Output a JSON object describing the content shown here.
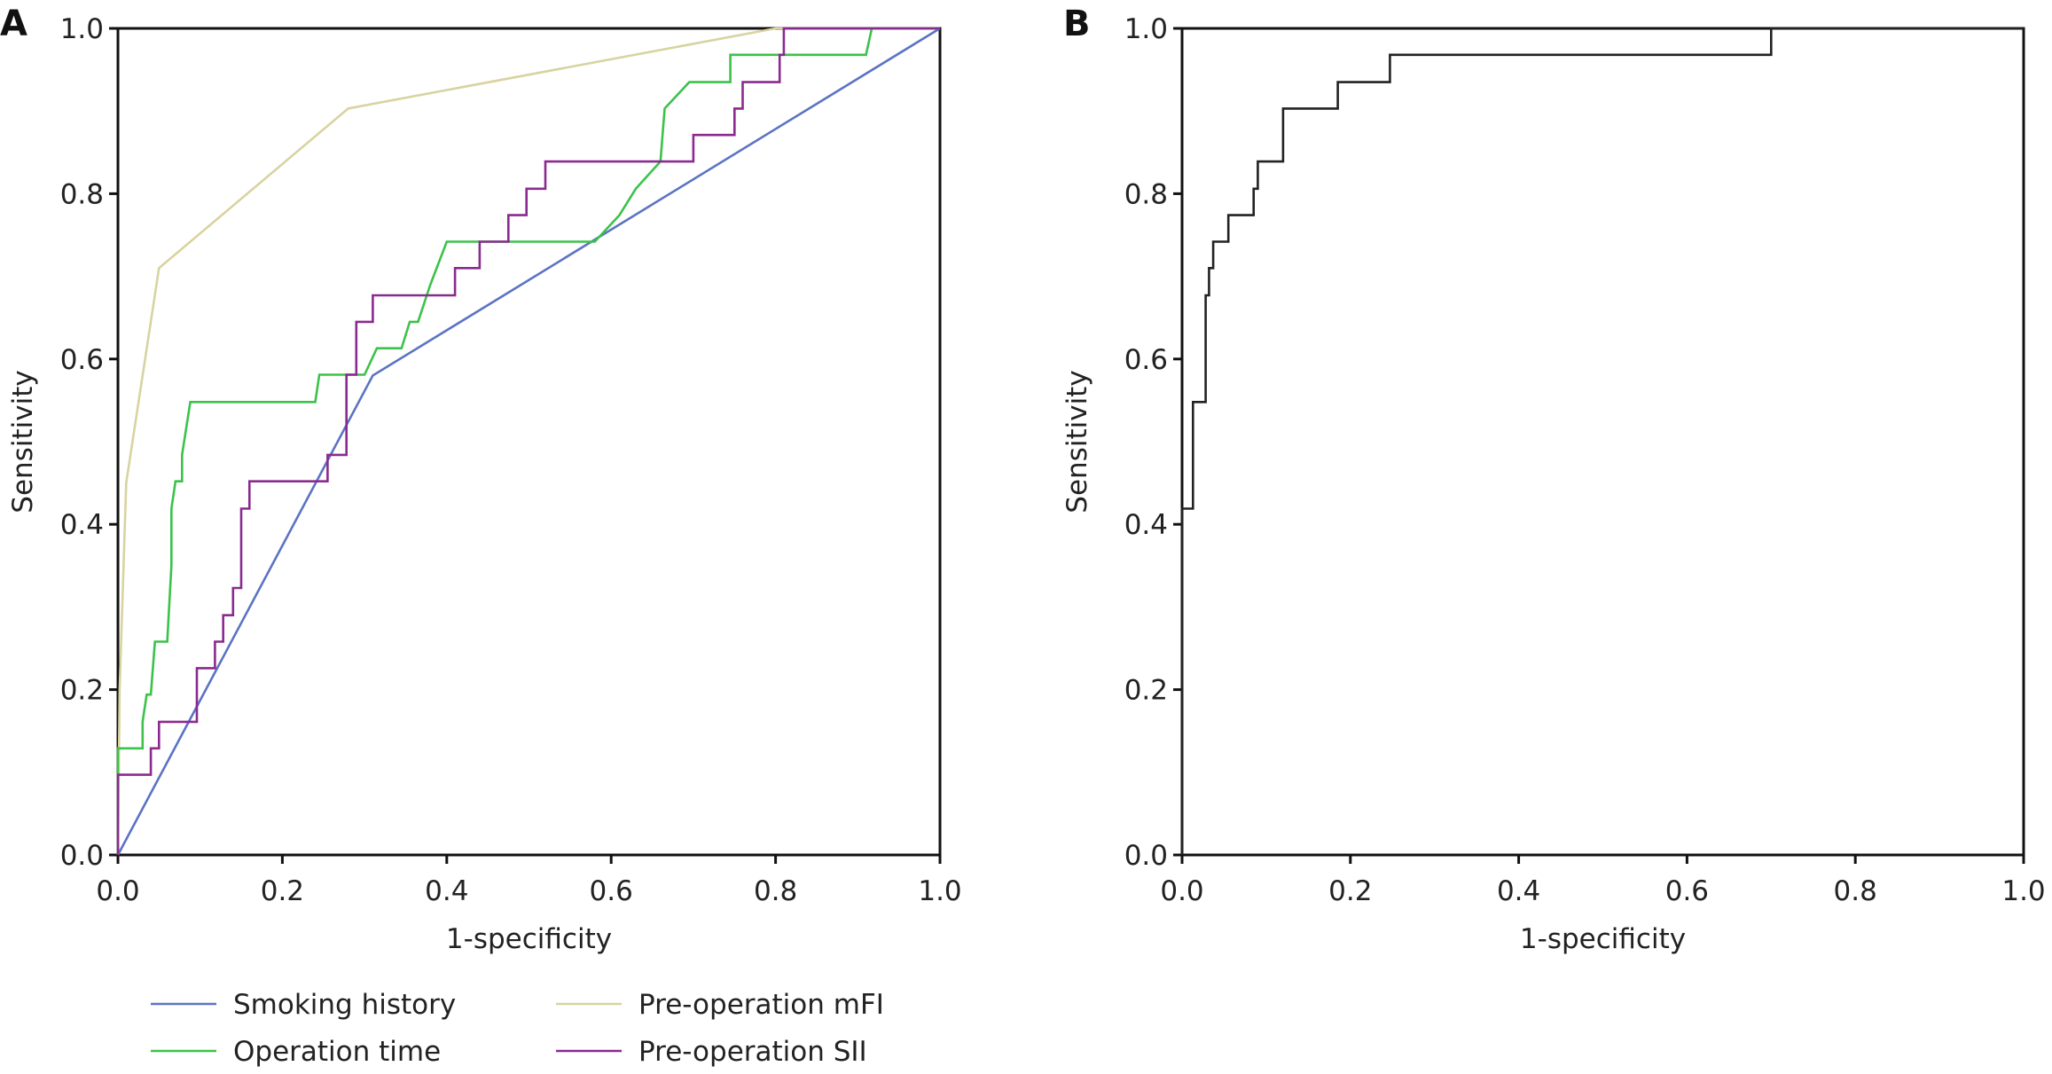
{
  "chart_data": [
    {
      "panel_label": "A",
      "type": "line",
      "xlabel": "1-specificity",
      "ylabel": "Sensitivity",
      "xlim": [
        0,
        1
      ],
      "ylim": [
        0,
        1
      ],
      "xticks": [
        "0.0",
        "0.2",
        "0.4",
        "0.6",
        "0.8",
        "1.0"
      ],
      "yticks": [
        "0.0",
        "0.2",
        "0.4",
        "0.6",
        "0.8",
        "1.0"
      ],
      "grid": false,
      "legend_position": "bottom",
      "series": [
        {
          "name": "Smoking history",
          "color": "#5b73c4",
          "points": [
            [
              0,
              0
            ],
            [
              0.31,
              0.58
            ],
            [
              1,
              1
            ]
          ]
        },
        {
          "name": "Pre-operation mFI",
          "color": "#d9d3a0",
          "points": [
            [
              0,
              0
            ],
            [
              0.002,
              0.2
            ],
            [
              0.01,
              0.45
            ],
            [
              0.05,
              0.71
            ],
            [
              0.28,
              0.903
            ],
            [
              0.8,
              1
            ],
            [
              1,
              1
            ]
          ]
        },
        {
          "name": "Operation time",
          "color": "#3cc24a",
          "points": [
            [
              0,
              0
            ],
            [
              0,
              0.129
            ],
            [
              0.03,
              0.129
            ],
            [
              0.03,
              0.161
            ],
            [
              0.035,
              0.194
            ],
            [
              0.04,
              0.194
            ],
            [
              0.045,
              0.258
            ],
            [
              0.06,
              0.258
            ],
            [
              0.065,
              0.35
            ],
            [
              0.065,
              0.419
            ],
            [
              0.07,
              0.452
            ],
            [
              0.078,
              0.452
            ],
            [
              0.078,
              0.484
            ],
            [
              0.088,
              0.548
            ],
            [
              0.24,
              0.548
            ],
            [
              0.245,
              0.581
            ],
            [
              0.3,
              0.581
            ],
            [
              0.315,
              0.613
            ],
            [
              0.345,
              0.613
            ],
            [
              0.355,
              0.645
            ],
            [
              0.365,
              0.645
            ],
            [
              0.38,
              0.69
            ],
            [
              0.4,
              0.742
            ],
            [
              0.58,
              0.742
            ],
            [
              0.61,
              0.774
            ],
            [
              0.63,
              0.806
            ],
            [
              0.66,
              0.839
            ],
            [
              0.665,
              0.903
            ],
            [
              0.695,
              0.935
            ],
            [
              0.745,
              0.935
            ],
            [
              0.745,
              0.968
            ],
            [
              0.91,
              0.968
            ],
            [
              0.917,
              1
            ],
            [
              1,
              1
            ]
          ]
        },
        {
          "name": "Pre-operation SII",
          "color": "#8a2a8f",
          "points": [
            [
              0,
              0
            ],
            [
              0,
              0.097
            ],
            [
              0.04,
              0.097
            ],
            [
              0.04,
              0.129
            ],
            [
              0.05,
              0.129
            ],
            [
              0.05,
              0.161
            ],
            [
              0.096,
              0.161
            ],
            [
              0.096,
              0.226
            ],
            [
              0.118,
              0.226
            ],
            [
              0.118,
              0.258
            ],
            [
              0.128,
              0.258
            ],
            [
              0.128,
              0.29
            ],
            [
              0.14,
              0.29
            ],
            [
              0.14,
              0.323
            ],
            [
              0.15,
              0.323
            ],
            [
              0.15,
              0.419
            ],
            [
              0.16,
              0.419
            ],
            [
              0.16,
              0.452
            ],
            [
              0.255,
              0.452
            ],
            [
              0.255,
              0.484
            ],
            [
              0.278,
              0.484
            ],
            [
              0.278,
              0.581
            ],
            [
              0.29,
              0.581
            ],
            [
              0.29,
              0.645
            ],
            [
              0.31,
              0.645
            ],
            [
              0.31,
              0.677
            ],
            [
              0.41,
              0.677
            ],
            [
              0.41,
              0.71
            ],
            [
              0.44,
              0.71
            ],
            [
              0.44,
              0.742
            ],
            [
              0.475,
              0.742
            ],
            [
              0.475,
              0.774
            ],
            [
              0.497,
              0.774
            ],
            [
              0.497,
              0.806
            ],
            [
              0.52,
              0.806
            ],
            [
              0.52,
              0.839
            ],
            [
              0.7,
              0.839
            ],
            [
              0.7,
              0.871
            ],
            [
              0.75,
              0.871
            ],
            [
              0.75,
              0.903
            ],
            [
              0.76,
              0.903
            ],
            [
              0.76,
              0.935
            ],
            [
              0.805,
              0.935
            ],
            [
              0.805,
              0.968
            ],
            [
              0.81,
              0.968
            ],
            [
              0.81,
              1
            ],
            [
              1,
              1
            ]
          ]
        }
      ]
    },
    {
      "panel_label": "B",
      "type": "line",
      "xlabel": "1-specificity",
      "ylabel": "Sensitivity",
      "xlim": [
        0,
        1
      ],
      "ylim": [
        0,
        1
      ],
      "xticks": [
        "0.0",
        "0.2",
        "0.4",
        "0.6",
        "0.8",
        "1.0"
      ],
      "yticks": [
        "0.0",
        "0.2",
        "0.4",
        "0.6",
        "0.8",
        "1.0"
      ],
      "grid": false,
      "series": [
        {
          "color": "#222222",
          "points": [
            [
              0,
              0
            ],
            [
              0,
              0.419
            ],
            [
              0.013,
              0.419
            ],
            [
              0.013,
              0.548
            ],
            [
              0.028,
              0.548
            ],
            [
              0.028,
              0.677
            ],
            [
              0.032,
              0.677
            ],
            [
              0.032,
              0.71
            ],
            [
              0.037,
              0.71
            ],
            [
              0.037,
              0.742
            ],
            [
              0.055,
              0.742
            ],
            [
              0.055,
              0.774
            ],
            [
              0.085,
              0.774
            ],
            [
              0.085,
              0.806
            ],
            [
              0.09,
              0.806
            ],
            [
              0.09,
              0.839
            ],
            [
              0.12,
              0.839
            ],
            [
              0.12,
              0.903
            ],
            [
              0.185,
              0.903
            ],
            [
              0.185,
              0.935
            ],
            [
              0.247,
              0.935
            ],
            [
              0.247,
              0.968
            ],
            [
              0.7,
              0.968
            ],
            [
              0.7,
              1
            ],
            [
              1,
              1
            ]
          ]
        }
      ]
    }
  ]
}
